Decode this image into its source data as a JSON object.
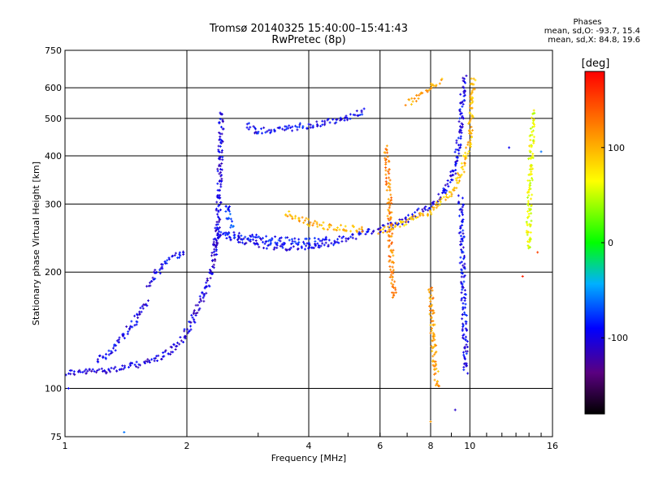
{
  "header": {
    "title": "Tromsø 20140325 15:40:00–15:41:43",
    "subtitle": "RwPretec (8p)"
  },
  "phase_stats": {
    "heading": "Phases",
    "line_o": "mean, sd,O: -93.7, 15.4",
    "line_x": "mean, sd,X:  84.8, 19.6"
  },
  "colorbar": {
    "label": "[deg]",
    "ticks": [
      "100",
      "0",
      "-100"
    ],
    "tick_values": [
      100,
      0,
      -100
    ],
    "range": [
      -180,
      180
    ]
  },
  "chart_data": {
    "type": "scatter",
    "xlabel": "Frequency [MHz]",
    "ylabel": "Stationary phase Virtual Height [km]",
    "x_scale": "log",
    "y_scale": "log",
    "xlim": [
      1,
      16
    ],
    "ylim": [
      75,
      750
    ],
    "x_ticks": [
      1,
      2,
      4,
      6,
      8,
      10,
      16
    ],
    "x_tick_labels": [
      "1",
      "2",
      "4",
      "6",
      "8",
      "10",
      "16"
    ],
    "y_ticks": [
      75,
      100,
      200,
      300,
      400,
      500,
      600,
      750
    ],
    "y_tick_labels": [
      "75",
      "100",
      "200",
      "300",
      "400",
      "500",
      "600",
      "750"
    ],
    "grid": true,
    "color_meaning": "phase in degrees",
    "traces": [
      {
        "points": [
          [
            1.0,
            110
          ],
          [
            1.1,
            110
          ],
          [
            1.2,
            111
          ],
          [
            1.3,
            112
          ],
          [
            1.4,
            113
          ],
          [
            1.5,
            115
          ],
          [
            1.6,
            117
          ],
          [
            1.7,
            120
          ],
          [
            1.8,
            124
          ],
          [
            1.9,
            130
          ],
          [
            2.0,
            140
          ],
          [
            2.1,
            155
          ],
          [
            2.2,
            175
          ],
          [
            2.3,
            200
          ],
          [
            2.35,
            230
          ],
          [
            2.4,
            260
          ]
        ],
        "phase": -105
      },
      {
        "points": [
          [
            1.2,
            118
          ],
          [
            1.3,
            125
          ],
          [
            1.4,
            138
          ],
          [
            1.5,
            150
          ],
          [
            1.55,
            160
          ],
          [
            1.6,
            168
          ]
        ],
        "phase": -100
      },
      {
        "points": [
          [
            1.6,
            185
          ],
          [
            1.7,
            200
          ],
          [
            1.8,
            215
          ],
          [
            1.9,
            222
          ],
          [
            2.0,
            225
          ]
        ],
        "phase": -95
      },
      {
        "points": [
          [
            2.35,
            230
          ],
          [
            2.4,
            300
          ],
          [
            2.42,
            400
          ],
          [
            2.44,
            520
          ]
        ],
        "phase": -102
      },
      {
        "points": [
          [
            2.4,
            250
          ],
          [
            2.6,
            245
          ],
          [
            2.8,
            240
          ],
          [
            3.0,
            236
          ],
          [
            3.3,
            233
          ],
          [
            3.6,
            232
          ],
          [
            4.0,
            233
          ],
          [
            4.5,
            238
          ],
          [
            5.0,
            245
          ],
          [
            5.5,
            252
          ],
          [
            6.0,
            258
          ],
          [
            6.5,
            266
          ],
          [
            7.0,
            275
          ],
          [
            7.5,
            285
          ],
          [
            8.0,
            298
          ],
          [
            8.5,
            315
          ],
          [
            9.0,
            345
          ],
          [
            9.3,
            400
          ],
          [
            9.5,
            480
          ],
          [
            9.6,
            560
          ],
          [
            9.7,
            640
          ]
        ],
        "phase": -98
      },
      {
        "points": [
          [
            2.5,
            250
          ],
          [
            2.8,
            247
          ],
          [
            3.2,
            243
          ],
          [
            3.6,
            241
          ],
          [
            4.0,
            240
          ],
          [
            4.5,
            242
          ]
        ],
        "phase": -90
      },
      {
        "points": [
          [
            2.5,
            300
          ],
          [
            2.55,
            270
          ],
          [
            2.6,
            260
          ]
        ],
        "phase": -80
      },
      {
        "points": [
          [
            2.8,
            480
          ],
          [
            3.0,
            465
          ],
          [
            3.5,
            470
          ],
          [
            4.0,
            480
          ],
          [
            4.5,
            490
          ],
          [
            5.0,
            505
          ],
          [
            5.5,
            525
          ]
        ],
        "phase": -95
      },
      {
        "points": [
          [
            3.5,
            285
          ],
          [
            4.0,
            268
          ],
          [
            4.5,
            262
          ],
          [
            5.0,
            260
          ],
          [
            5.5,
            258
          ]
        ],
        "phase": 100
      },
      {
        "points": [
          [
            6.0,
            255
          ],
          [
            7.0,
            270
          ],
          [
            8.0,
            288
          ],
          [
            9.0,
            320
          ],
          [
            9.5,
            360
          ],
          [
            10.0,
            430
          ],
          [
            10.1,
            520
          ],
          [
            10.2,
            640
          ]
        ],
        "phase": 95
      },
      {
        "points": [
          [
            7.0,
            550
          ],
          [
            7.5,
            570
          ],
          [
            8.0,
            600
          ],
          [
            8.5,
            630
          ]
        ],
        "phase": 105
      },
      {
        "points": [
          [
            6.2,
            420
          ],
          [
            6.3,
            330
          ],
          [
            6.4,
            210
          ],
          [
            6.5,
            170
          ]
        ],
        "phase": 120
      },
      {
        "points": [
          [
            8.0,
            180
          ],
          [
            8.1,
            140
          ],
          [
            8.2,
            115
          ],
          [
            8.3,
            100
          ]
        ],
        "phase": 110
      },
      {
        "points": [
          [
            9.5,
            310
          ],
          [
            9.55,
            250
          ],
          [
            9.6,
            200
          ],
          [
            9.7,
            150
          ],
          [
            9.8,
            110
          ]
        ],
        "phase": -95
      },
      {
        "points": [
          [
            14.0,
            230
          ],
          [
            14.0,
            270
          ],
          [
            14.1,
            350
          ],
          [
            14.2,
            430
          ],
          [
            14.3,
            520
          ]
        ],
        "phase": 60
      }
    ],
    "isolated_points": [
      {
        "x": 1.4,
        "y": 77,
        "phase": -60
      },
      {
        "x": 9.2,
        "y": 88,
        "phase": -110
      },
      {
        "x": 8.0,
        "y": 82,
        "phase": 110
      },
      {
        "x": 1.02,
        "y": 100,
        "phase": -90
      },
      {
        "x": 13.5,
        "y": 195,
        "phase": 165
      },
      {
        "x": 14.7,
        "y": 225,
        "phase": 150
      },
      {
        "x": 15.0,
        "y": 410,
        "phase": -60
      },
      {
        "x": 12.5,
        "y": 420,
        "phase": -95
      }
    ]
  }
}
